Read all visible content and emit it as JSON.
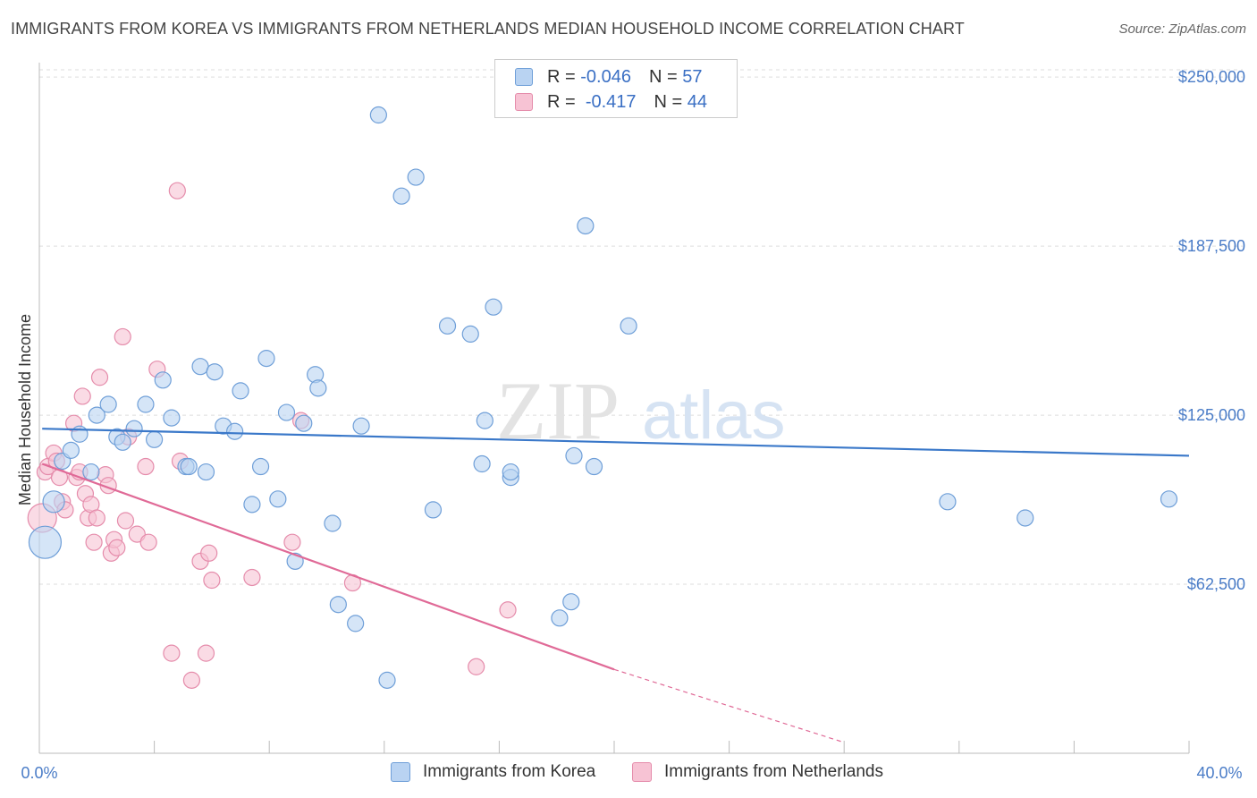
{
  "title": "IMMIGRANTS FROM KOREA VS IMMIGRANTS FROM NETHERLANDS MEDIAN HOUSEHOLD INCOME CORRELATION CHART",
  "source": "Source: ZipAtlas.com",
  "watermark": {
    "zip": "ZIP",
    "atlas": "atlas"
  },
  "legend": [
    {
      "r_label": "R =",
      "r_value": "-0.046",
      "n_label": "N =",
      "n_value": "57"
    },
    {
      "r_label": "R =",
      "r_value": "-0.417",
      "n_label": "N =",
      "n_value": "44"
    }
  ],
  "colors": {
    "korea_fill": "#b9d3f2",
    "korea_stroke": "#6f9fd8",
    "korea_line": "#3a78c9",
    "neth_fill": "#f7c3d4",
    "neth_stroke": "#e58cab",
    "neth_line": "#e06a97",
    "grid": "#dddddd",
    "tick_text": "#4a7cc7"
  },
  "chart_data": {
    "type": "scatter",
    "xlabel": "",
    "ylabel": "Median Household Income",
    "xlim": [
      0,
      40
    ],
    "ylim": [
      0,
      258000
    ],
    "x_tick_labels": [
      "0.0%",
      "40.0%"
    ],
    "y_ticks": [
      62500,
      125000,
      187500,
      250000
    ],
    "y_tick_labels": [
      "$62,500",
      "$125,000",
      "$187,500",
      "$250,000"
    ],
    "grid": true,
    "legend_position": "top-center",
    "series": [
      {
        "name": "Immigrants from Korea",
        "r": -0.046,
        "n": 57,
        "trend": {
          "x": [
            0.1,
            40.0
          ],
          "y": [
            120000,
            110000
          ]
        },
        "points": [
          [
            0.2,
            78000,
            18
          ],
          [
            0.5,
            93000,
            12
          ],
          [
            0.8,
            108000,
            9
          ],
          [
            1.1,
            112000,
            9
          ],
          [
            1.4,
            118000,
            9
          ],
          [
            2.0,
            125000,
            9
          ],
          [
            2.4,
            129000,
            9
          ],
          [
            1.8,
            104000,
            9
          ],
          [
            2.7,
            117000,
            9
          ],
          [
            2.9,
            115000,
            9
          ],
          [
            3.3,
            120000,
            9
          ],
          [
            3.7,
            129000,
            9
          ],
          [
            4.0,
            116000,
            9
          ],
          [
            4.3,
            138000,
            9
          ],
          [
            4.6,
            124000,
            9
          ],
          [
            5.1,
            106000,
            9
          ],
          [
            5.2,
            106000,
            9
          ],
          [
            5.6,
            143000,
            9
          ],
          [
            5.8,
            104000,
            9
          ],
          [
            6.1,
            141000,
            9
          ],
          [
            6.4,
            121000,
            9
          ],
          [
            6.8,
            119000,
            9
          ],
          [
            7.0,
            134000,
            9
          ],
          [
            7.4,
            92000,
            9
          ],
          [
            7.7,
            106000,
            9
          ],
          [
            7.9,
            146000,
            9
          ],
          [
            8.3,
            94000,
            9
          ],
          [
            8.6,
            126000,
            9
          ],
          [
            8.9,
            71000,
            9
          ],
          [
            9.2,
            122000,
            9
          ],
          [
            9.6,
            140000,
            9
          ],
          [
            9.7,
            135000,
            9
          ],
          [
            10.2,
            85000,
            9
          ],
          [
            10.4,
            55000,
            9
          ],
          [
            11.0,
            48000,
            9
          ],
          [
            11.2,
            121000,
            9
          ],
          [
            11.8,
            236000,
            9
          ],
          [
            12.1,
            27000,
            9
          ],
          [
            12.6,
            206000,
            9
          ],
          [
            13.1,
            213000,
            9
          ],
          [
            13.7,
            90000,
            9
          ],
          [
            14.2,
            158000,
            9
          ],
          [
            15.0,
            155000,
            9
          ],
          [
            15.4,
            107000,
            9
          ],
          [
            15.5,
            123000,
            9
          ],
          [
            15.8,
            165000,
            9
          ],
          [
            16.4,
            102000,
            9
          ],
          [
            16.4,
            104000,
            9
          ],
          [
            18.1,
            50000,
            9
          ],
          [
            18.5,
            56000,
            9
          ],
          [
            18.6,
            110000,
            9
          ],
          [
            19.0,
            195000,
            9
          ],
          [
            19.3,
            106000,
            9
          ],
          [
            20.5,
            158000,
            9
          ],
          [
            31.6,
            93000,
            9
          ],
          [
            34.3,
            87000,
            9
          ],
          [
            39.3,
            94000,
            9
          ]
        ]
      },
      {
        "name": "Immigrants from Netherlands",
        "r": -0.417,
        "n": 44,
        "trend": {
          "x": [
            0.1,
            20.0
          ],
          "y": [
            107000,
            31000
          ],
          "dashed_to": [
            28.0,
            4000
          ]
        },
        "points": [
          [
            0.1,
            87000,
            16
          ],
          [
            0.2,
            104000,
            9
          ],
          [
            0.3,
            106000,
            9
          ],
          [
            0.5,
            111000,
            9
          ],
          [
            0.6,
            108000,
            9
          ],
          [
            0.7,
            102000,
            9
          ],
          [
            0.8,
            93000,
            9
          ],
          [
            0.9,
            90000,
            9
          ],
          [
            1.2,
            122000,
            9
          ],
          [
            1.3,
            102000,
            9
          ],
          [
            1.4,
            104000,
            9
          ],
          [
            1.5,
            132000,
            9
          ],
          [
            1.6,
            96000,
            9
          ],
          [
            1.7,
            87000,
            9
          ],
          [
            1.8,
            92000,
            9
          ],
          [
            1.9,
            78000,
            9
          ],
          [
            2.0,
            87000,
            9
          ],
          [
            2.1,
            139000,
            9
          ],
          [
            2.3,
            103000,
            9
          ],
          [
            2.4,
            99000,
            9
          ],
          [
            2.5,
            74000,
            9
          ],
          [
            2.6,
            79000,
            9
          ],
          [
            2.7,
            76000,
            9
          ],
          [
            2.9,
            154000,
            9
          ],
          [
            3.0,
            86000,
            9
          ],
          [
            3.1,
            117000,
            9
          ],
          [
            3.4,
            81000,
            9
          ],
          [
            3.7,
            106000,
            9
          ],
          [
            3.8,
            78000,
            9
          ],
          [
            4.1,
            142000,
            9
          ],
          [
            4.6,
            37000,
            9
          ],
          [
            4.8,
            208000,
            9
          ],
          [
            4.9,
            108000,
            9
          ],
          [
            5.3,
            27000,
            9
          ],
          [
            5.6,
            71000,
            9
          ],
          [
            5.8,
            37000,
            9
          ],
          [
            5.9,
            74000,
            9
          ],
          [
            6.0,
            64000,
            9
          ],
          [
            7.4,
            65000,
            9
          ],
          [
            8.8,
            78000,
            9
          ],
          [
            9.1,
            123000,
            9
          ],
          [
            10.9,
            63000,
            9
          ],
          [
            15.2,
            32000,
            9
          ],
          [
            16.3,
            53000,
            9
          ]
        ]
      }
    ]
  }
}
